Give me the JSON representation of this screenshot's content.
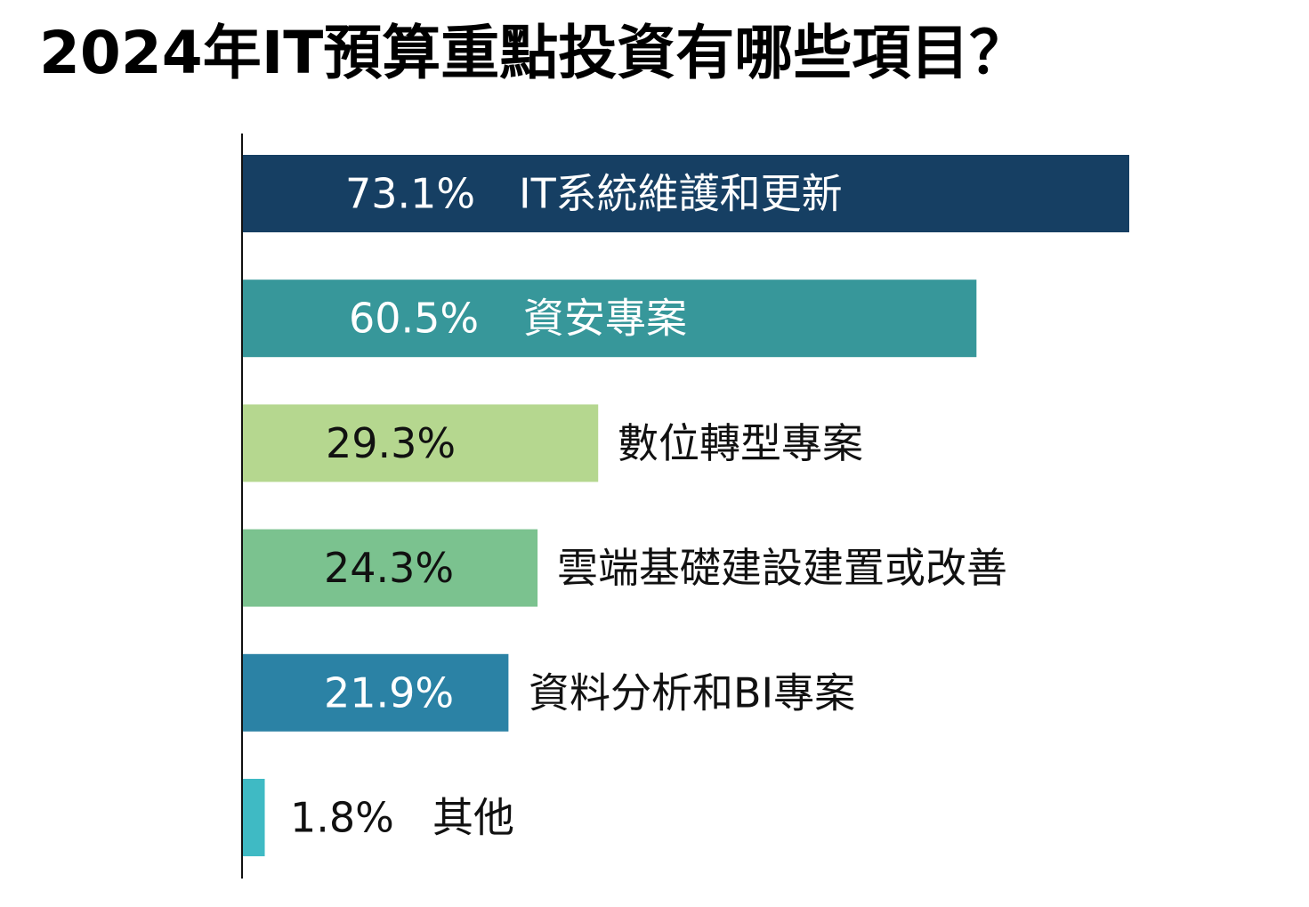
{
  "chart_data": {
    "type": "bar",
    "orientation": "horizontal",
    "title": "2024年IT預算重點投資有哪些項目？",
    "value_unit": "%",
    "xlim": [
      0,
      73.1
    ],
    "grid": false,
    "legend": "none",
    "categories": [
      "IT系統維護和更新",
      "資安專案",
      "數位轉型專案",
      "雲端基礎建設建置或改善",
      "資料分析和BI專案",
      "其他"
    ],
    "values": [
      73.1,
      60.5,
      29.3,
      24.3,
      21.9,
      1.8
    ],
    "value_labels": [
      "73.1%",
      "60.5%",
      "29.3%",
      "24.3%",
      "21.9%",
      "1.8%"
    ],
    "bar_colors": [
      "#163f63",
      "#37979a",
      "#b5d78f",
      "#7bc28f",
      "#2b82a5",
      "#3fbac4"
    ],
    "label_colors": [
      "#ffffff",
      "#ffffff",
      "#111111",
      "#111111",
      "#ffffff",
      "#111111"
    ],
    "name_colors": [
      "#ffffff",
      "#ffffff",
      "#111111",
      "#111111",
      "#111111",
      "#111111"
    ]
  }
}
